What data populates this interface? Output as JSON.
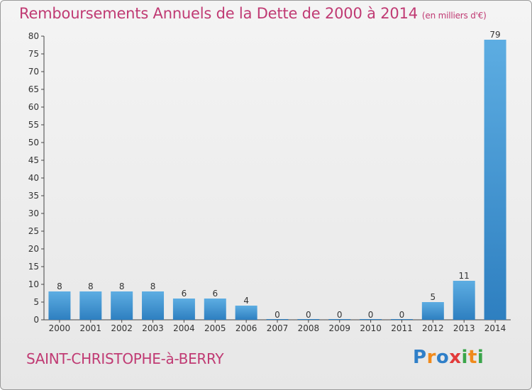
{
  "title": "Remboursements Annuels de la Dette de 2000 à 2014",
  "unit": "(en milliers d'€)",
  "commune": "SAINT-CHRISTOPHE-à-BERRY",
  "logo": {
    "letters": [
      "P",
      "r",
      "o",
      "x",
      "i",
      "t",
      "i"
    ]
  },
  "colors": {
    "bar_light": "#5dade2",
    "bar_dark": "#2e7fc0",
    "title": "#c03a73"
  },
  "chart_data": {
    "type": "bar",
    "categories": [
      "2000",
      "2001",
      "2002",
      "2003",
      "2004",
      "2005",
      "2006",
      "2007",
      "2008",
      "2009",
      "2010",
      "2011",
      "2012",
      "2013",
      "2014"
    ],
    "values": [
      8,
      8,
      8,
      8,
      6,
      6,
      4,
      0,
      0,
      0,
      0,
      0,
      5,
      11,
      79
    ],
    "title": "Remboursements Annuels de la Dette de 2000 à 2014",
    "ylim": [
      0,
      80
    ],
    "yticks": [
      0,
      5,
      10,
      15,
      20,
      25,
      30,
      35,
      40,
      45,
      50,
      55,
      60,
      65,
      70,
      75,
      80
    ],
    "grid": false,
    "legend": "none"
  }
}
